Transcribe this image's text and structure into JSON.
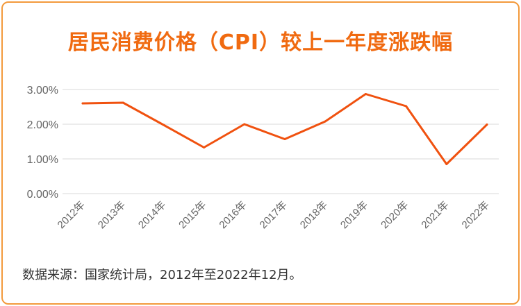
{
  "title": "居民消费价格（CPI）较上一年度涨跌幅",
  "source": "数据来源：国家统计局，2012年至2022年12月。",
  "colors": {
    "line": "#f0510f",
    "title": "#f06a10",
    "border": "#f39a3c",
    "grid": "#d8d8d8",
    "tick": "#666666"
  },
  "chart_data": {
    "type": "line",
    "title": "居民消费价格（CPI）较上一年度涨跌幅",
    "xlabel": "",
    "ylabel": "",
    "categories": [
      "2012年",
      "2013年",
      "2014年",
      "2015年",
      "2016年",
      "2017年",
      "2018年",
      "2019年",
      "2020年",
      "2021年",
      "2022年"
    ],
    "yticks": [
      "0.00%",
      "1.00%",
      "2.00%",
      "3.00%"
    ],
    "ylim": [
      0,
      3
    ],
    "grid": true,
    "series": [
      {
        "values": [
          2.6,
          2.62,
          1.98,
          1.33,
          2.0,
          1.57,
          2.08,
          2.87,
          2.52,
          0.85,
          1.99
        ]
      }
    ]
  }
}
